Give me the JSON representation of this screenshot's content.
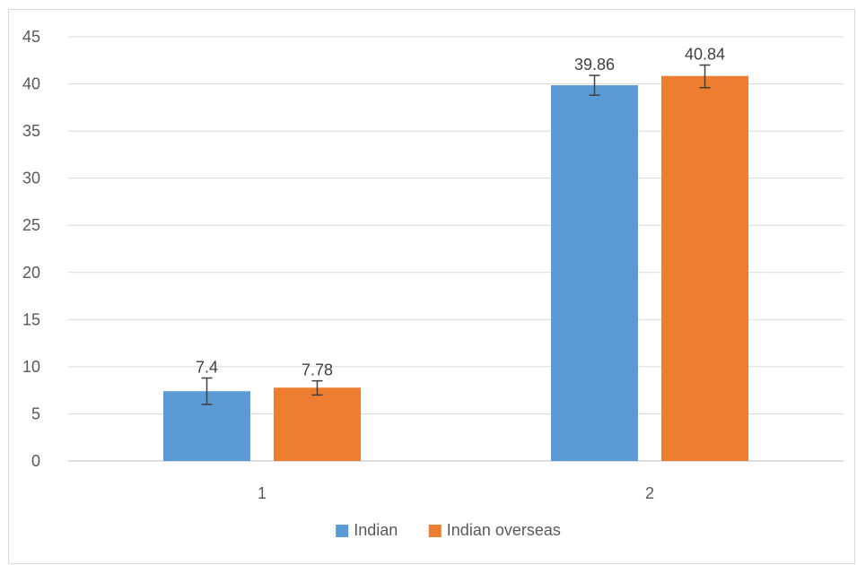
{
  "chart_data": {
    "type": "bar",
    "title": "",
    "xlabel": "",
    "ylabel": "",
    "categories": [
      "1",
      "2"
    ],
    "ylim": [
      0,
      45
    ],
    "yticks": [
      0,
      5,
      10,
      15,
      20,
      25,
      30,
      35,
      40,
      45
    ],
    "grid": true,
    "legend_position": "bottom",
    "series": [
      {
        "name": "Indian",
        "color": "#5b9bd5",
        "values": [
          7.4,
          39.86
        ],
        "labels": [
          "7.4",
          "39.86"
        ],
        "error_low": [
          6.0,
          38.8
        ],
        "error_high": [
          8.8,
          40.9
        ]
      },
      {
        "name": "Indian overseas",
        "color": "#ed7d31",
        "values": [
          7.78,
          40.84
        ],
        "labels": [
          "7.78",
          "40.84"
        ],
        "error_low": [
          7.0,
          39.6
        ],
        "error_high": [
          8.5,
          42.0
        ]
      }
    ]
  }
}
